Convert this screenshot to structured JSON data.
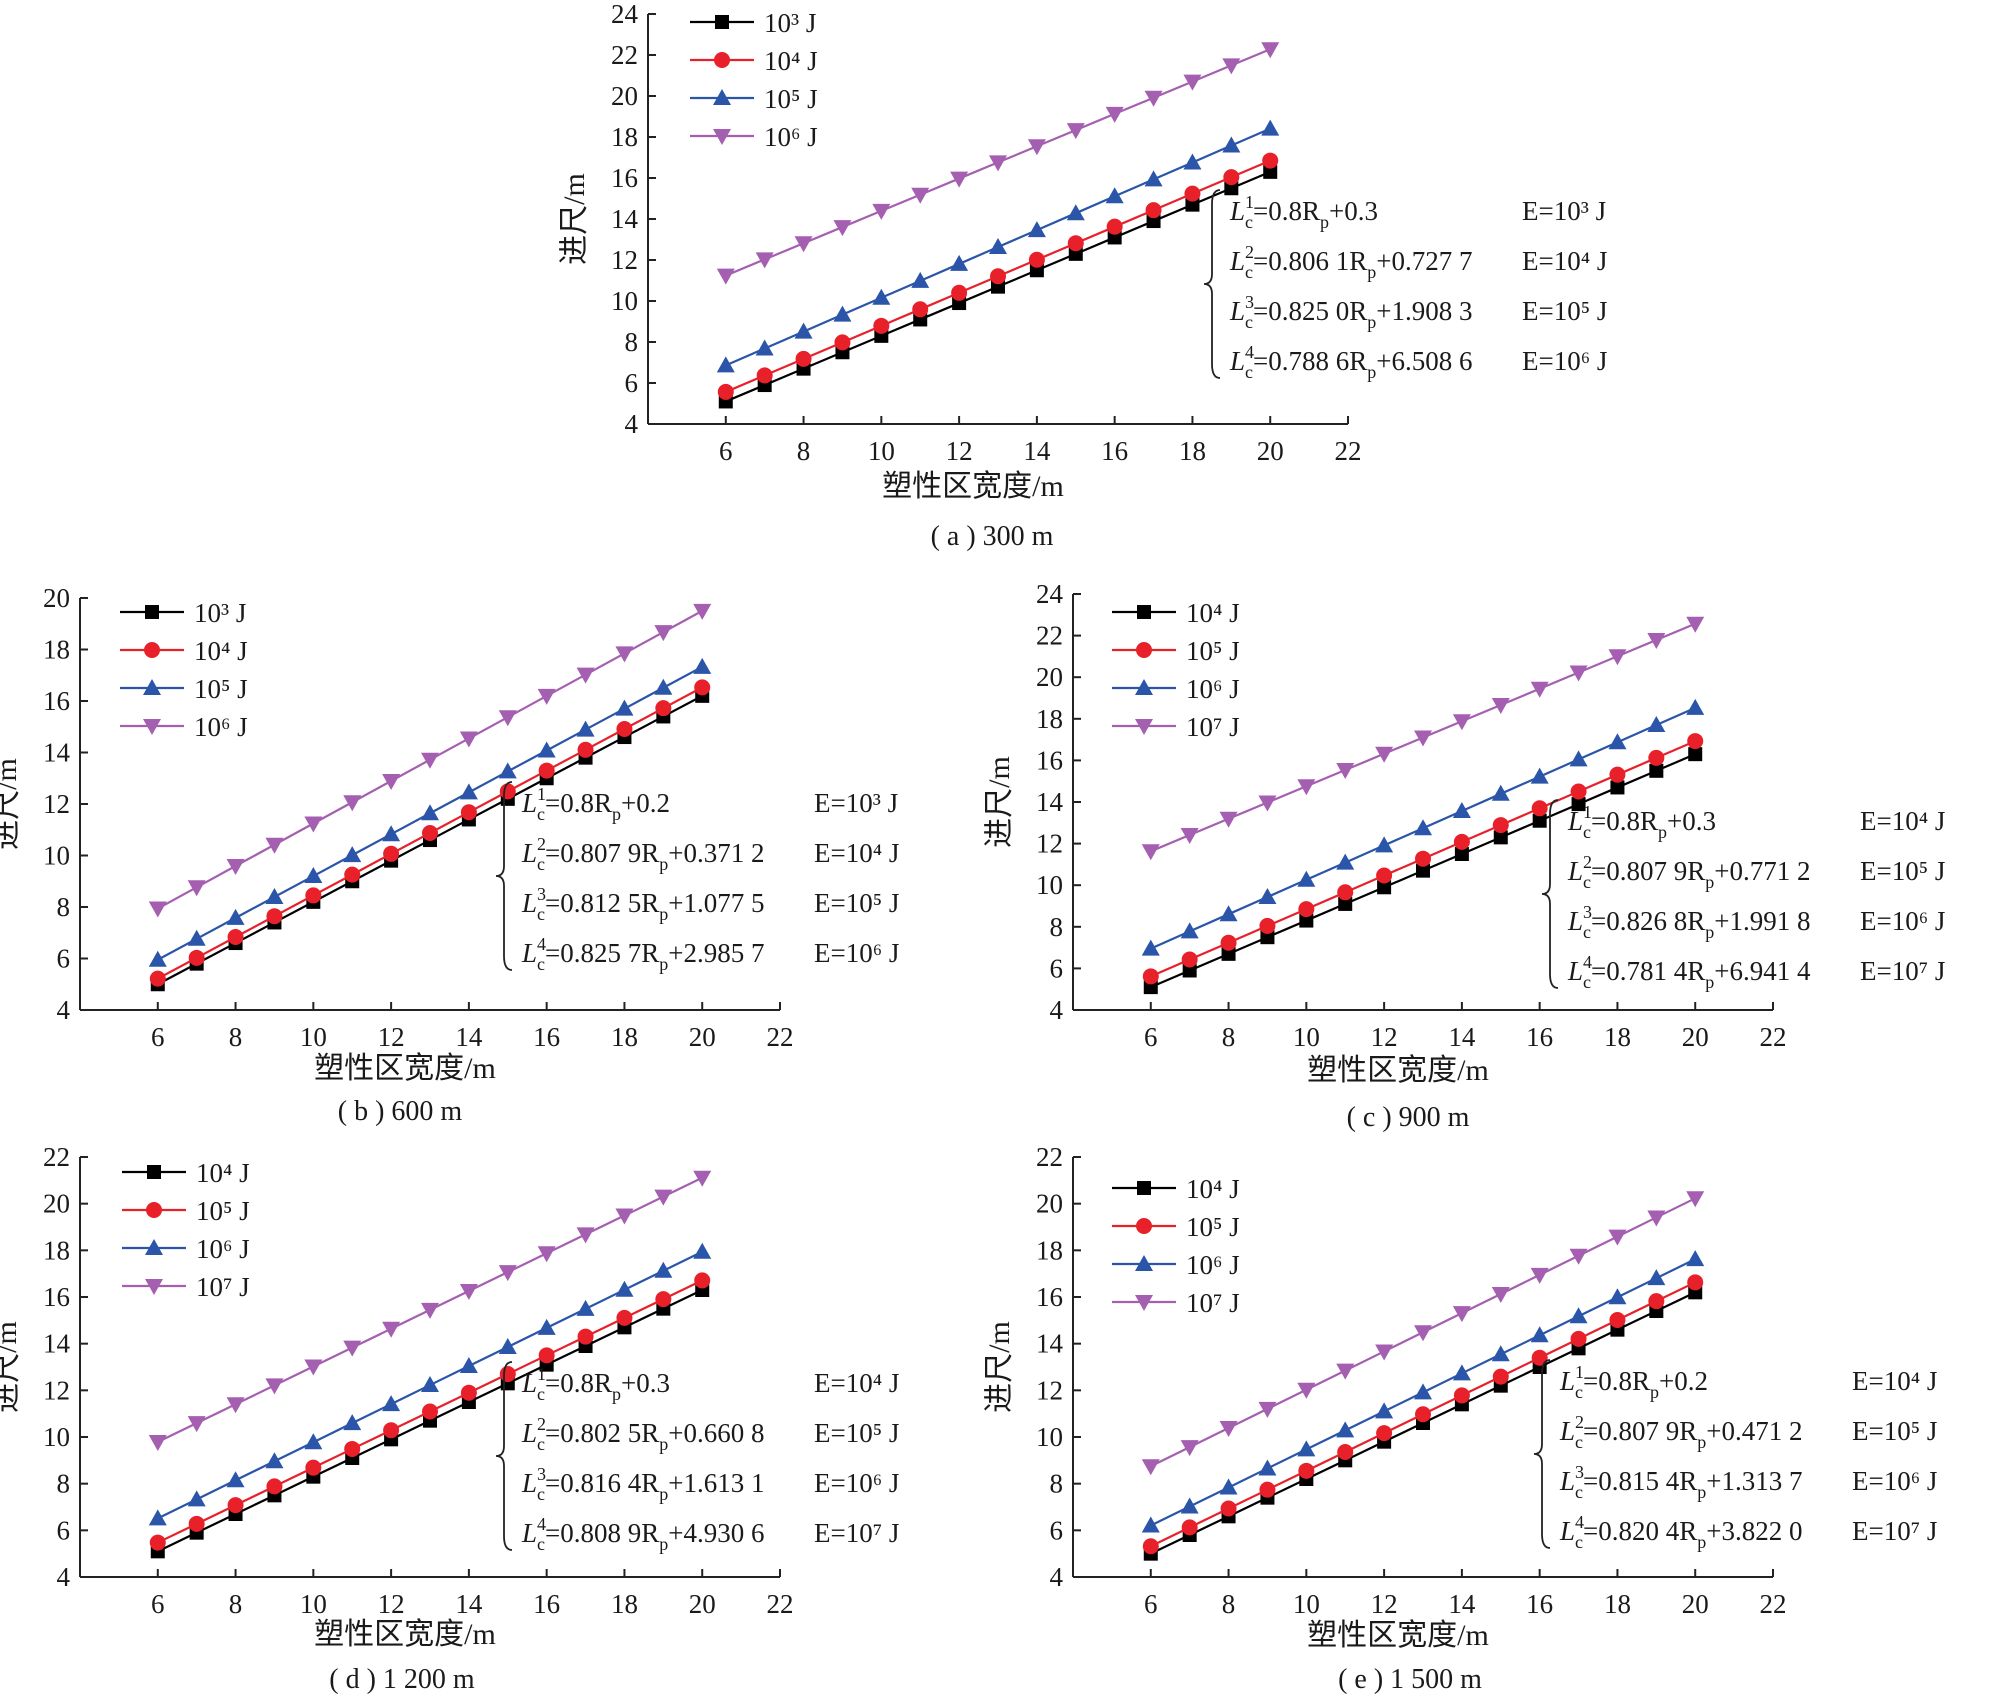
{
  "chart_data": [
    {
      "type": "line",
      "caption": "( a ) 300 m",
      "xlabel": "塑性区宽度/m",
      "ylabel": "进尺/m",
      "xlim": [
        4,
        22
      ],
      "ylim": [
        4,
        24
      ],
      "xticks": [
        6,
        8,
        10,
        12,
        14,
        16,
        18,
        20,
        22
      ],
      "yticks": [
        4,
        6,
        8,
        10,
        12,
        14,
        16,
        18,
        20,
        22,
        24
      ],
      "grid": false,
      "legend_position": "top-left",
      "x": [
        6,
        7,
        8,
        9,
        10,
        11,
        12,
        13,
        14,
        15,
        16,
        17,
        18,
        19,
        20
      ],
      "series": [
        {
          "name": "10³ J",
          "slope": 0.8,
          "intercept": 0.3
        },
        {
          "name": "10⁴ J",
          "slope": 0.8061,
          "intercept": 0.7277
        },
        {
          "name": "10⁵ J",
          "slope": 0.825,
          "intercept": 1.9083
        },
        {
          "name": "10⁶ J",
          "slope": 0.7886,
          "intercept": 6.5086
        }
      ],
      "equations": [
        {
          "lhs": "L",
          "sub": "c",
          "sup": "1",
          "rhs": "=0.8R",
          "rsub": "p",
          "tail": "+0.3",
          "energy": "E=10³ J"
        },
        {
          "lhs": "L",
          "sub": "c",
          "sup": "2",
          "rhs": "=0.806 1R",
          "rsub": "p",
          "tail": "+0.727 7",
          "energy": "E=10⁴ J"
        },
        {
          "lhs": "L",
          "sub": "c",
          "sup": "3",
          "rhs": "=0.825 0R",
          "rsub": "p",
          "tail": "+1.908 3",
          "energy": "E=10⁵ J"
        },
        {
          "lhs": "L",
          "sub": "c",
          "sup": "4",
          "rhs": "=0.788 6R",
          "rsub": "p",
          "tail": "+6.508 6",
          "energy": "E=10⁶ J"
        }
      ]
    },
    {
      "type": "line",
      "caption": "( b ) 600 m",
      "xlabel": "塑性区宽度/m",
      "ylabel": "进尺/m",
      "xlim": [
        4,
        22
      ],
      "ylim": [
        4,
        20
      ],
      "xticks": [
        6,
        8,
        10,
        12,
        14,
        16,
        18,
        20,
        22
      ],
      "yticks": [
        4,
        6,
        8,
        10,
        12,
        14,
        16,
        18,
        20
      ],
      "grid": false,
      "legend_position": "top-left",
      "x": [
        6,
        7,
        8,
        9,
        10,
        11,
        12,
        13,
        14,
        15,
        16,
        17,
        18,
        19,
        20
      ],
      "series": [
        {
          "name": "10³ J",
          "slope": 0.8,
          "intercept": 0.2
        },
        {
          "name": "10⁴ J",
          "slope": 0.8079,
          "intercept": 0.3712
        },
        {
          "name": "10⁵ J",
          "slope": 0.8125,
          "intercept": 1.0775
        },
        {
          "name": "10⁶ J",
          "slope": 0.8257,
          "intercept": 2.9857
        }
      ],
      "equations": [
        {
          "lhs": "L",
          "sub": "c",
          "sup": "1",
          "rhs": "=0.8R",
          "rsub": "p",
          "tail": "+0.2",
          "energy": "E=10³ J"
        },
        {
          "lhs": "L",
          "sub": "c",
          "sup": "2",
          "rhs": "=0.807 9R",
          "rsub": "p",
          "tail": "+0.371 2",
          "energy": "E=10⁴ J"
        },
        {
          "lhs": "L",
          "sub": "c",
          "sup": "3",
          "rhs": "=0.812 5R",
          "rsub": "p",
          "tail": "+1.077 5",
          "energy": "E=10⁵ J"
        },
        {
          "lhs": "L",
          "sub": "c",
          "sup": "4",
          "rhs": "=0.825 7R",
          "rsub": "p",
          "tail": "+2.985 7",
          "energy": "E=10⁶ J"
        }
      ]
    },
    {
      "type": "line",
      "caption": "( c ) 900 m",
      "xlabel": "塑性区宽度/m",
      "ylabel": "进尺/m",
      "xlim": [
        4,
        22
      ],
      "ylim": [
        4,
        24
      ],
      "xticks": [
        6,
        8,
        10,
        12,
        14,
        16,
        18,
        20,
        22
      ],
      "yticks": [
        4,
        6,
        8,
        10,
        12,
        14,
        16,
        18,
        20,
        22,
        24
      ],
      "grid": false,
      "legend_position": "top-left",
      "x": [
        6,
        7,
        8,
        9,
        10,
        11,
        12,
        13,
        14,
        15,
        16,
        17,
        18,
        19,
        20
      ],
      "series": [
        {
          "name": "10⁴ J",
          "slope": 0.8,
          "intercept": 0.3
        },
        {
          "name": "10⁵ J",
          "slope": 0.8079,
          "intercept": 0.7712
        },
        {
          "name": "10⁶ J",
          "slope": 0.8268,
          "intercept": 1.9918
        },
        {
          "name": "10⁷ J",
          "slope": 0.7814,
          "intercept": 6.9414
        }
      ],
      "equations": [
        {
          "lhs": "L",
          "sub": "c",
          "sup": "1",
          "rhs": "=0.8R",
          "rsub": "p",
          "tail": "+0.3",
          "energy": "E=10⁴ J"
        },
        {
          "lhs": "L",
          "sub": "c",
          "sup": "2",
          "rhs": "=0.807 9R",
          "rsub": "p",
          "tail": "+0.771 2",
          "energy": "E=10⁵ J"
        },
        {
          "lhs": "L",
          "sub": "c",
          "sup": "3",
          "rhs": "=0.826 8R",
          "rsub": "p",
          "tail": "+1.991 8",
          "energy": "E=10⁶ J"
        },
        {
          "lhs": "L",
          "sub": "c",
          "sup": "4",
          "rhs": "=0.781 4R",
          "rsub": "p",
          "tail": "+6.941 4",
          "energy": "E=10⁷ J"
        }
      ]
    },
    {
      "type": "line",
      "caption": "( d ) 1 200 m",
      "xlabel": "塑性区宽度/m",
      "ylabel": "进尺/m",
      "xlim": [
        4,
        22
      ],
      "ylim": [
        4,
        22
      ],
      "xticks": [
        6,
        8,
        10,
        12,
        14,
        16,
        18,
        20,
        22
      ],
      "yticks": [
        4,
        6,
        8,
        10,
        12,
        14,
        16,
        18,
        20,
        22
      ],
      "grid": false,
      "legend_position": "top-left",
      "x": [
        6,
        7,
        8,
        9,
        10,
        11,
        12,
        13,
        14,
        15,
        16,
        17,
        18,
        19,
        20
      ],
      "series": [
        {
          "name": "10⁴ J",
          "slope": 0.8,
          "intercept": 0.3
        },
        {
          "name": "10⁵ J",
          "slope": 0.8025,
          "intercept": 0.6608
        },
        {
          "name": "10⁶ J",
          "slope": 0.8164,
          "intercept": 1.6131
        },
        {
          "name": "10⁷ J",
          "slope": 0.8089,
          "intercept": 4.9306
        }
      ],
      "equations": [
        {
          "lhs": "L",
          "sub": "c",
          "sup": "1",
          "rhs": "=0.8R",
          "rsub": "p",
          "tail": "+0.3",
          "energy": "E=10⁴ J"
        },
        {
          "lhs": "L",
          "sub": "c",
          "sup": "2",
          "rhs": "=0.802 5R",
          "rsub": "p",
          "tail": "+0.660 8",
          "energy": "E=10⁵ J"
        },
        {
          "lhs": "L",
          "sub": "c",
          "sup": "3",
          "rhs": "=0.816 4R",
          "rsub": "p",
          "tail": "+1.613 1",
          "energy": "E=10⁶ J"
        },
        {
          "lhs": "L",
          "sub": "c",
          "sup": "4",
          "rhs": "=0.808 9R",
          "rsub": "p",
          "tail": "+4.930 6",
          "energy": "E=10⁷ J"
        }
      ]
    },
    {
      "type": "line",
      "caption": "( e ) 1 500 m",
      "xlabel": "塑性区宽度/m",
      "ylabel": "进尺/m",
      "xlim": [
        4,
        22
      ],
      "ylim": [
        4,
        22
      ],
      "xticks": [
        6,
        8,
        10,
        12,
        14,
        16,
        18,
        20,
        22
      ],
      "yticks": [
        4,
        6,
        8,
        10,
        12,
        14,
        16,
        18,
        20,
        22
      ],
      "grid": false,
      "legend_position": "top-left",
      "x": [
        6,
        7,
        8,
        9,
        10,
        11,
        12,
        13,
        14,
        15,
        16,
        17,
        18,
        19,
        20
      ],
      "series": [
        {
          "name": "10⁴ J",
          "slope": 0.8,
          "intercept": 0.2
        },
        {
          "name": "10⁵ J",
          "slope": 0.8079,
          "intercept": 0.4712
        },
        {
          "name": "10⁶ J",
          "slope": 0.8154,
          "intercept": 1.3137
        },
        {
          "name": "10⁷ J",
          "slope": 0.8204,
          "intercept": 3.822
        }
      ],
      "equations": [
        {
          "lhs": "L",
          "sub": "c",
          "sup": "1",
          "rhs": "=0.8R",
          "rsub": "p",
          "tail": "+0.2",
          "energy": "E=10⁴ J"
        },
        {
          "lhs": "L",
          "sub": "c",
          "sup": "2",
          "rhs": "=0.807 9R",
          "rsub": "p",
          "tail": "+0.471 2",
          "energy": "E=10⁵ J"
        },
        {
          "lhs": "L",
          "sub": "c",
          "sup": "3",
          "rhs": "=0.815 4R",
          "rsub": "p",
          "tail": "+1.313 7",
          "energy": "E=10⁶ J"
        },
        {
          "lhs": "L",
          "sub": "c",
          "sup": "4",
          "rhs": "=0.820 4R",
          "rsub": "p",
          "tail": "+3.822 0",
          "energy": "E=10⁷ J"
        }
      ]
    }
  ],
  "series_style": [
    {
      "color": "#000000",
      "marker": "square"
    },
    {
      "color": "#e8202a",
      "marker": "circle"
    },
    {
      "color": "#2a55a8",
      "marker": "triangle-up"
    },
    {
      "color": "#a55fb0",
      "marker": "triangle-down"
    }
  ]
}
